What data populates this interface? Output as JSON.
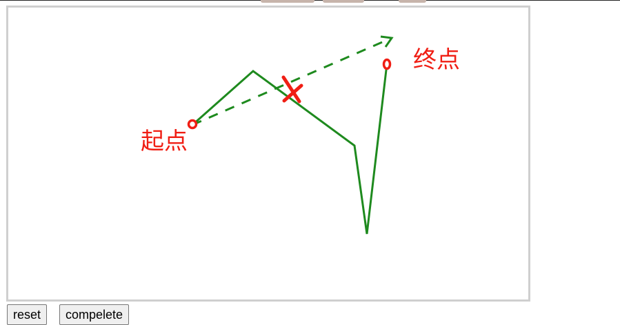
{
  "labels": {
    "start": "起点",
    "end": "终点"
  },
  "buttons": {
    "reset": "reset",
    "complete": "compelete"
  },
  "colors": {
    "path": "#1e8a1e",
    "marker": "#f01e14",
    "frame": "#cfcfcf"
  }
}
